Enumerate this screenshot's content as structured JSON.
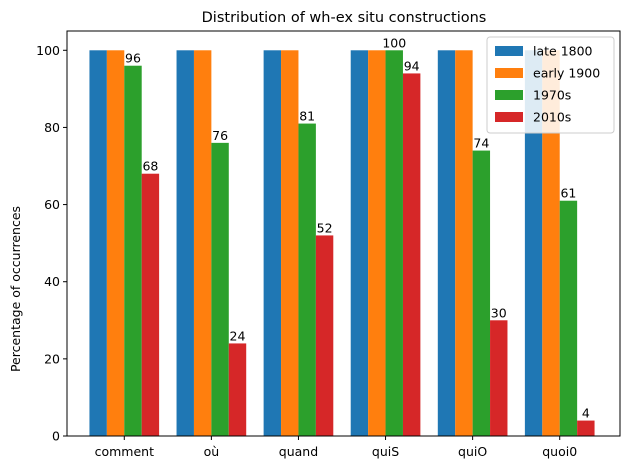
{
  "chart_data": {
    "type": "bar",
    "title": "Distribution of wh-ex situ constructions",
    "xlabel": "",
    "ylabel": "Percentage of occurrences",
    "ylim": [
      0,
      105
    ],
    "yticks": [
      0,
      20,
      40,
      60,
      80,
      100
    ],
    "categories": [
      "comment",
      "où",
      "quand",
      "quiS",
      "quiO",
      "quoi0"
    ],
    "series": [
      {
        "name": "late 1800",
        "color": "#1f77b4",
        "values": [
          100,
          100,
          100,
          100,
          100,
          100
        ],
        "labeled": false
      },
      {
        "name": "early 1900",
        "color": "#ff7f0e",
        "values": [
          100,
          100,
          100,
          100,
          100,
          100
        ],
        "labeled": false
      },
      {
        "name": "1970s",
        "color": "#2ca02c",
        "values": [
          96,
          76,
          81,
          100,
          74,
          61
        ],
        "labeled": true
      },
      {
        "name": "2010s",
        "color": "#d62728",
        "values": [
          68,
          24,
          52,
          94,
          30,
          4
        ],
        "labeled": true
      }
    ],
    "legend_position": "top-right",
    "grid": false
  }
}
